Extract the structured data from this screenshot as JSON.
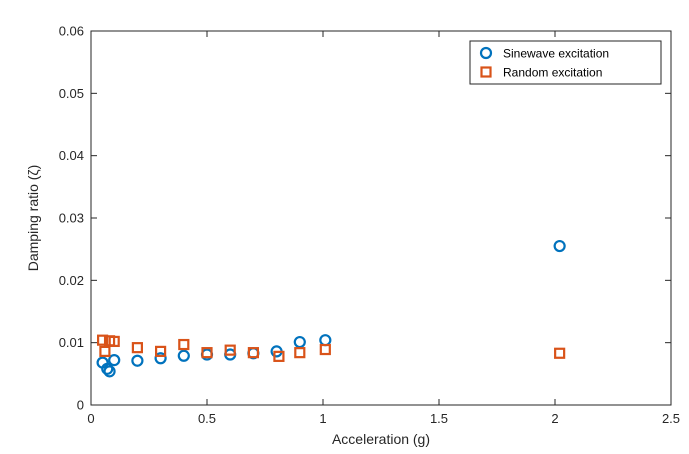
{
  "chart_data": {
    "type": "scatter",
    "title": "",
    "xlabel": "Acceleration (g)",
    "ylabel": "Damping ratio (ζ)",
    "xlim": [
      0,
      2.5
    ],
    "ylim": [
      0,
      0.06
    ],
    "xticks": [
      0,
      0.5,
      1,
      1.5,
      2,
      2.5
    ],
    "xtick_labels": [
      "0",
      "0.5",
      "1",
      "1.5",
      "2",
      "2.5"
    ],
    "yticks": [
      0,
      0.01,
      0.02,
      0.03,
      0.04,
      0.05,
      0.06
    ],
    "ytick_labels": [
      "0",
      "0.01",
      "0.02",
      "0.03",
      "0.04",
      "0.05",
      "0.06"
    ],
    "grid": false,
    "legend_position": "top-right",
    "series": [
      {
        "name": "Sinewave excitation",
        "marker": "circle",
        "color": "#0072BD",
        "points": [
          [
            0.05,
            0.0068
          ],
          [
            0.07,
            0.0058
          ],
          [
            0.08,
            0.0054
          ],
          [
            0.1,
            0.0072
          ],
          [
            0.2,
            0.0071
          ],
          [
            0.3,
            0.0075
          ],
          [
            0.4,
            0.0079
          ],
          [
            0.5,
            0.0081
          ],
          [
            0.6,
            0.0081
          ],
          [
            0.7,
            0.0083
          ],
          [
            0.8,
            0.0086
          ],
          [
            0.9,
            0.0101
          ],
          [
            1.01,
            0.0104
          ],
          [
            2.02,
            0.0255
          ]
        ]
      },
      {
        "name": "Random excitation",
        "marker": "square",
        "color": "#D95319",
        "points": [
          [
            0.05,
            0.0104
          ],
          [
            0.06,
            0.0086
          ],
          [
            0.08,
            0.0103
          ],
          [
            0.1,
            0.0102
          ],
          [
            0.2,
            0.0092
          ],
          [
            0.3,
            0.0086
          ],
          [
            0.4,
            0.0097
          ],
          [
            0.5,
            0.0084
          ],
          [
            0.6,
            0.0088
          ],
          [
            0.7,
            0.0084
          ],
          [
            0.81,
            0.0078
          ],
          [
            0.9,
            0.0084
          ],
          [
            1.01,
            0.0089
          ],
          [
            2.02,
            0.0083
          ]
        ]
      }
    ]
  }
}
